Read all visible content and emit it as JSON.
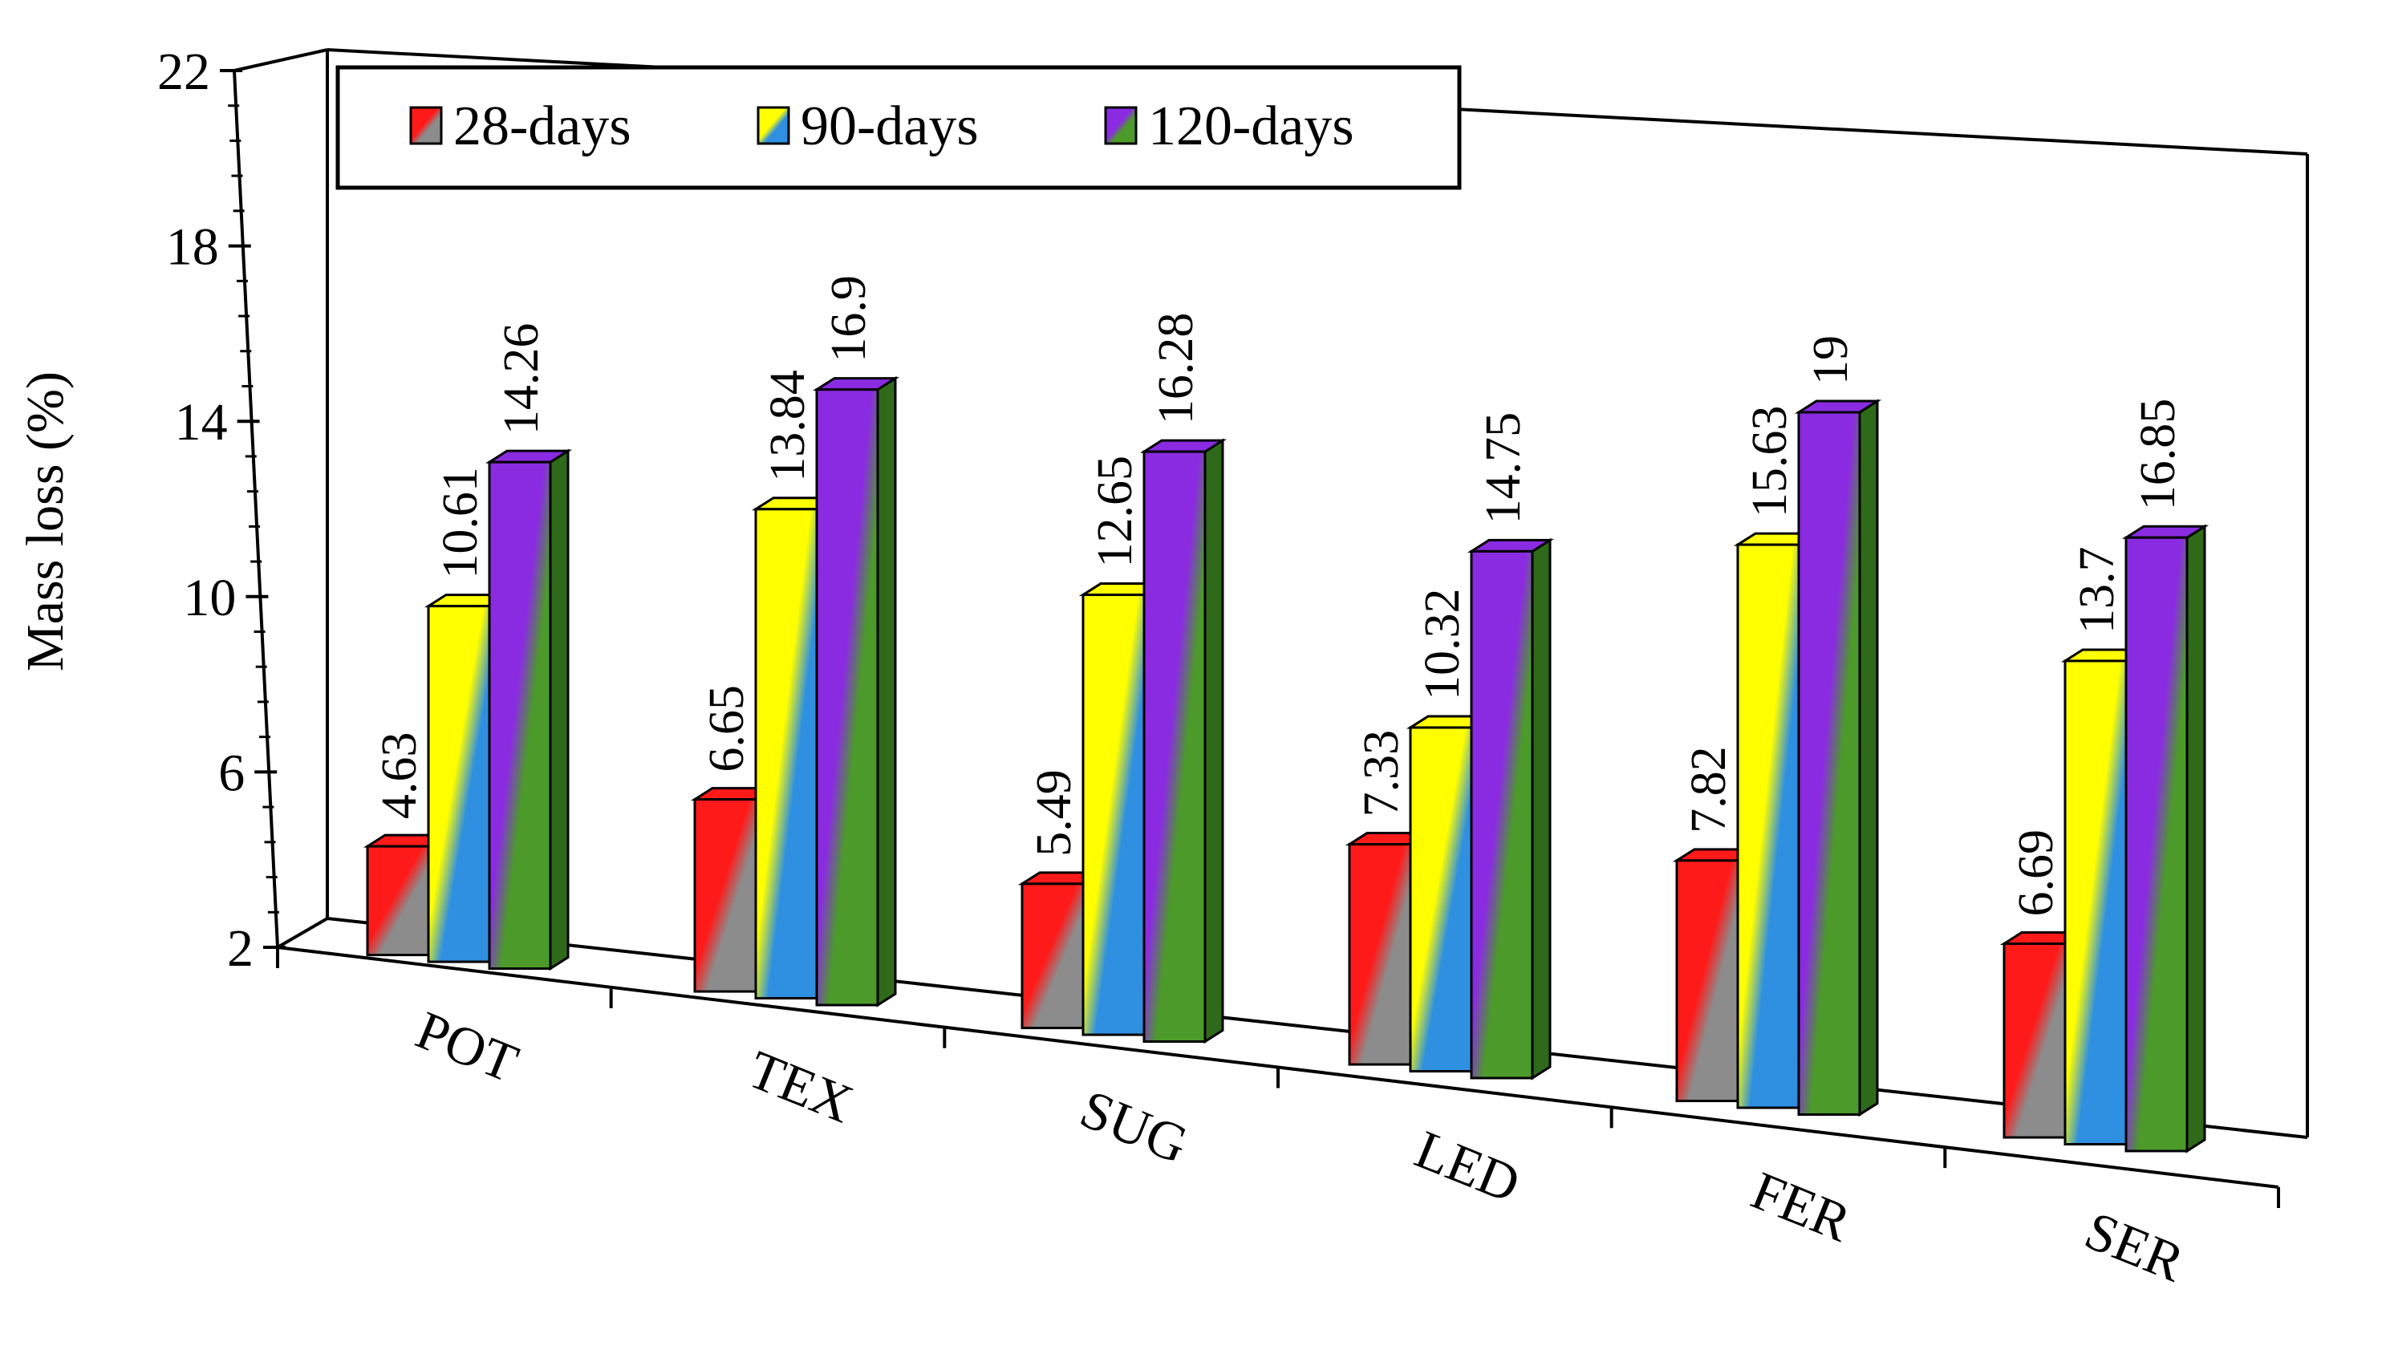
{
  "chart_data": {
    "type": "bar",
    "style": "3d-perspective",
    "title": "",
    "xlabel": "",
    "ylabel": "Mass loss (%)",
    "ylim": [
      2,
      22
    ],
    "yticks": [
      2,
      6,
      10,
      14,
      18,
      22
    ],
    "grid": false,
    "legend_position": "top-left",
    "categories": [
      "POT",
      "TEX",
      "SUG",
      "LED",
      "FER",
      "SER"
    ],
    "series": [
      {
        "name": "28-days",
        "values": [
          4.63,
          6.65,
          5.49,
          7.33,
          7.82,
          6.69
        ],
        "colors": [
          "#ff1a1a",
          "#8c8c8c",
          "#b00000"
        ]
      },
      {
        "name": "90-days",
        "values": [
          10.61,
          13.84,
          12.65,
          10.32,
          15.63,
          13.7
        ],
        "colors": [
          "#ffff00",
          "#2f8fe0",
          "#c8c800"
        ]
      },
      {
        "name": "120-days",
        "values": [
          14.26,
          16.9,
          16.28,
          14.75,
          19,
          16.85
        ],
        "colors": [
          "#8a2be2",
          "#4c9b2a",
          "#2f6a1a"
        ]
      }
    ]
  }
}
